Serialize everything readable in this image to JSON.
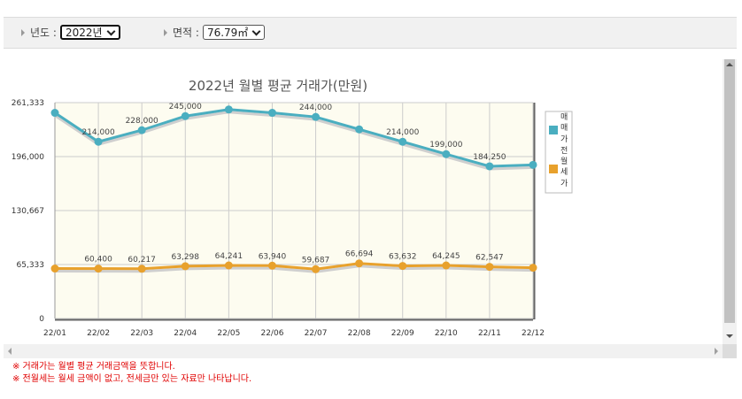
{
  "filters": {
    "year": {
      "label": "년도 :",
      "value": "2022년"
    },
    "area": {
      "label": "면적 :",
      "value": "76.79㎡"
    }
  },
  "chart_data": {
    "type": "line",
    "title": "2022년 월별 평균 거래가(만원)",
    "categories": [
      "22/01",
      "22/02",
      "22/03",
      "22/04",
      "22/05",
      "22/06",
      "22/07",
      "22/08",
      "22/09",
      "22/10",
      "22/11",
      "22/12"
    ],
    "y_ticks": [
      "261,333",
      "196,000",
      "130,667",
      "65,333",
      "0"
    ],
    "ylim": [
      0,
      261333
    ],
    "grid": true,
    "legend_position": "right",
    "legend_text": [
      "매",
      "매",
      "가",
      "전",
      "월",
      "세",
      "가"
    ],
    "series": [
      {
        "color": "#4aaec0",
        "values": [
          249000,
          214000,
          228000,
          245000,
          253000,
          249000,
          244000,
          229000,
          214000,
          199000,
          184250,
          186000
        ],
        "labels": [
          "",
          "214,000",
          "228,000",
          "245,000",
          "",
          "",
          "244,000",
          "",
          "214,000",
          "199,000",
          "184,250",
          ""
        ]
      },
      {
        "color": "#e8a12c",
        "values": [
          60500,
          60400,
          60217,
          63298,
          64241,
          63940,
          59687,
          66694,
          63632,
          64245,
          62547,
          61500
        ],
        "labels": [
          "",
          "60,400",
          "60,217",
          "63,298",
          "64,241",
          "63,940",
          "59,687",
          "66,694",
          "63,632",
          "64,245",
          "62,547",
          ""
        ]
      }
    ]
  },
  "notes": [
    "※ 거래가는 월별 평균 거래금액을 뜻합니다.",
    "※ 전월세는 월세 금액이 없고, 전세금만 있는 자료만 나타납니다."
  ]
}
